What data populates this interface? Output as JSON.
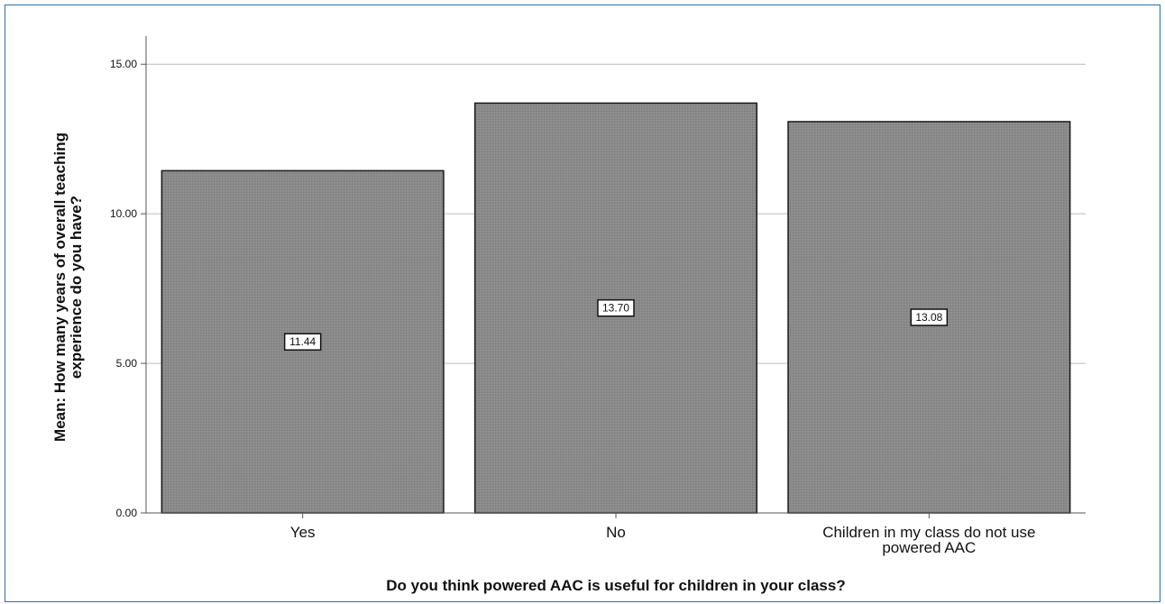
{
  "chart_data": {
    "type": "bar",
    "categories": [
      [
        "Yes"
      ],
      [
        "No"
      ],
      [
        "Children in my class do not use",
        "powered AAC"
      ]
    ],
    "values": [
      11.44,
      13.7,
      13.08
    ],
    "data_labels": [
      "11.44",
      "13.70",
      "13.08"
    ],
    "xlabel": "Do you think powered AAC is useful for children in your class?",
    "ylabel": [
      "Mean: How many years of overall teaching",
      "experience do you have?"
    ],
    "yticks": [
      0,
      5,
      10,
      15
    ],
    "ytick_labels": [
      "0.00",
      "5.00",
      "10.00",
      "15.00"
    ],
    "ylim": [
      0,
      15.7
    ],
    "grid": true,
    "legend": "none",
    "colors": {
      "bar": "#8a8a8a",
      "bar_stroke": "#1a1a1a",
      "grid": "#bcbcbc",
      "axis": "#555555",
      "frame": "#2f6fa8"
    }
  }
}
